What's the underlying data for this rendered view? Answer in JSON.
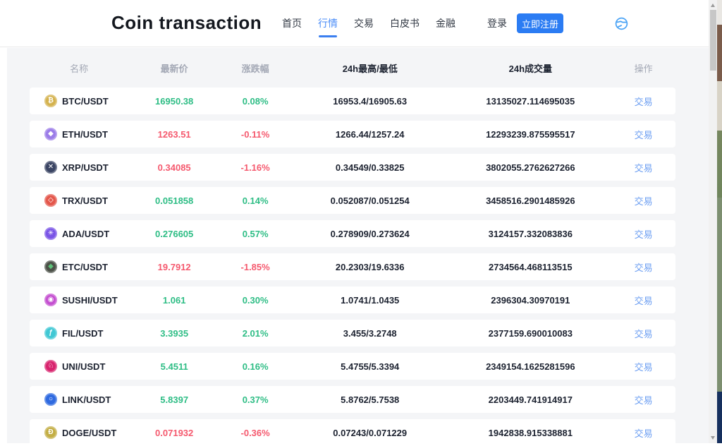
{
  "header": {
    "title": "Coin transaction",
    "nav": [
      {
        "label": "首页",
        "active": false
      },
      {
        "label": "行情",
        "active": true
      },
      {
        "label": "交易",
        "active": false
      },
      {
        "label": "白皮书",
        "active": false
      },
      {
        "label": "金融",
        "active": false
      }
    ],
    "login_label": "登录",
    "register_label": "立即注册",
    "globe_icon": "globe-icon"
  },
  "table": {
    "columns": [
      "名称",
      "最新价",
      "涨跌幅",
      "24h最高/最低",
      "24h成交量",
      "操作"
    ],
    "action_label": "交易",
    "rows": [
      {
        "pair": "BTC/USDT",
        "price": "16950.38",
        "change": "0.08%",
        "trend": "up",
        "high_low": "16953.4/16905.63",
        "volume": "13135027.114695035",
        "icon": {
          "name": "btc-icon",
          "glyph": "₿",
          "bg": "#d4b24e",
          "fg": "#ffffff"
        }
      },
      {
        "pair": "ETH/USDT",
        "price": "1263.51",
        "change": "-0.11%",
        "trend": "down",
        "high_low": "1266.44/1257.24",
        "volume": "12293239.875595517",
        "icon": {
          "name": "eth-icon",
          "glyph": "◆",
          "bg": "#9b7ce8",
          "fg": "#ffffff"
        }
      },
      {
        "pair": "XRP/USDT",
        "price": "0.34085",
        "change": "-1.16%",
        "trend": "down",
        "high_low": "0.34549/0.33825",
        "volume": "3802055.2762627266",
        "icon": {
          "name": "xrp-icon",
          "glyph": "✕",
          "bg": "#3a4463",
          "fg": "#ffffff"
        }
      },
      {
        "pair": "TRX/USDT",
        "price": "0.051858",
        "change": "0.14%",
        "trend": "up",
        "high_low": "0.052087/0.051254",
        "volume": "3458516.2901485926",
        "icon": {
          "name": "trx-icon",
          "glyph": "◇",
          "bg": "#e4574b",
          "fg": "#ffffff"
        }
      },
      {
        "pair": "ADA/USDT",
        "price": "0.276605",
        "change": "0.57%",
        "trend": "up",
        "high_low": "0.278909/0.273624",
        "volume": "3124157.332083836",
        "icon": {
          "name": "ada-icon",
          "glyph": "✳",
          "bg": "#7a55e6",
          "fg": "#ffffff"
        }
      },
      {
        "pair": "ETC/USDT",
        "price": "19.7912",
        "change": "-1.85%",
        "trend": "down",
        "high_low": "20.2303/19.6336",
        "volume": "2734564.468113515",
        "icon": {
          "name": "etc-icon",
          "glyph": "◆",
          "bg": "#4c5148",
          "fg": "#5ec27a"
        }
      },
      {
        "pair": "SUSHI/USDT",
        "price": "1.061",
        "change": "0.30%",
        "trend": "up",
        "high_low": "1.0741/1.0435",
        "volume": "2396304.30970191",
        "icon": {
          "name": "sushi-icon",
          "glyph": "◉",
          "bg": "#c44fd0",
          "fg": "#ffffff"
        }
      },
      {
        "pair": "FIL/USDT",
        "price": "3.3935",
        "change": "2.01%",
        "trend": "up",
        "high_low": "3.455/3.2748",
        "volume": "2377159.690010083",
        "icon": {
          "name": "fil-icon",
          "glyph": "ƒ",
          "bg": "#41c8d4",
          "fg": "#ffffff"
        }
      },
      {
        "pair": "UNI/USDT",
        "price": "5.4511",
        "change": "0.16%",
        "trend": "up",
        "high_low": "5.4755/5.3394",
        "volume": "2349154.1625281596",
        "icon": {
          "name": "uni-icon",
          "glyph": "♘",
          "bg": "#d8246e",
          "fg": "#ffffff"
        }
      },
      {
        "pair": "LINK/USDT",
        "price": "5.8397",
        "change": "0.37%",
        "trend": "up",
        "high_low": "5.8762/5.7538",
        "volume": "2203449.741914917",
        "icon": {
          "name": "link-icon",
          "glyph": "○",
          "bg": "#2f6ae0",
          "fg": "#ffffff"
        }
      },
      {
        "pair": "DOGE/USDT",
        "price": "0.071932",
        "change": "-0.36%",
        "trend": "down",
        "high_low": "0.07243/0.071229",
        "volume": "1942838.915338881",
        "icon": {
          "name": "doge-icon",
          "glyph": "Đ",
          "bg": "#c3ae45",
          "fg": "#ffffff"
        }
      }
    ]
  },
  "colors": {
    "accent_blue": "#2b7cf3",
    "nav_active_blue": "#4b8df8",
    "trade_link_blue": "#6d9ff2",
    "up_green": "#2ebd85",
    "down_red": "#f5596e",
    "panel_gray": "#f4f5f7",
    "header_label_gray": "#a3a8b5"
  }
}
